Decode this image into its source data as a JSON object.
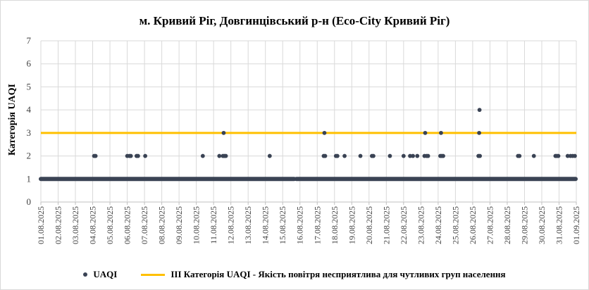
{
  "chart_data": {
    "type": "scatter",
    "title": "м. Кривий Ріг, Довгинцівський р-н (Eco-City Кривий Ріг)",
    "ylabel": "Категорія UAQI",
    "xlabel": "",
    "ylim": [
      0,
      7
    ],
    "yticks": [
      "0",
      "1",
      "2",
      "3",
      "4",
      "5",
      "6",
      "7"
    ],
    "xlim": [
      "2025-08-01",
      "2025-09-01"
    ],
    "xticks": [
      "01.08.2025",
      "02.08.2025",
      "03.08.2025",
      "04.08.2025",
      "05.08.2025",
      "06.08.2025",
      "07.08.2025",
      "08.08.2025",
      "09.08.2025",
      "10.08.2025",
      "11.08.2025",
      "12.08.2025",
      "13.08.2025",
      "14.08.2025",
      "15.08.2025",
      "16.08.2025",
      "17.08.2025",
      "18.08.2025",
      "19.08.2025",
      "20.08.2025",
      "21.08.2025",
      "22.08.2025",
      "23.08.2025",
      "24.08.2025",
      "25.08.2025",
      "26.08.2025",
      "27.08.2025",
      "28.08.2025",
      "29.08.2025",
      "30.08.2025",
      "31.08.2025",
      "01.09.2025"
    ],
    "grid": true,
    "legend_position": "bottom",
    "series": [
      {
        "name": "UAQI",
        "marker": "dot",
        "color": "#3a4354",
        "baseline_segments": [
          {
            "from": "2025-08-01 00:00",
            "to": "2025-08-15 16:00",
            "y": 1
          },
          {
            "from": "2025-08-15 19:00",
            "to": "2025-08-31 23:00",
            "y": 1
          }
        ],
        "points": [
          {
            "x": "2025-08-04 02:00",
            "y": 2
          },
          {
            "x": "2025-08-04 04:00",
            "y": 2
          },
          {
            "x": "2025-08-06 00:00",
            "y": 2
          },
          {
            "x": "2025-08-06 03:00",
            "y": 2
          },
          {
            "x": "2025-08-06 05:00",
            "y": 2
          },
          {
            "x": "2025-08-06 13:00",
            "y": 2
          },
          {
            "x": "2025-08-06 15:00",
            "y": 2
          },
          {
            "x": "2025-08-07 01:00",
            "y": 2
          },
          {
            "x": "2025-08-10 09:00",
            "y": 2
          },
          {
            "x": "2025-08-11 08:00",
            "y": 2
          },
          {
            "x": "2025-08-11 13:00",
            "y": 2
          },
          {
            "x": "2025-08-11 15:00",
            "y": 2
          },
          {
            "x": "2025-08-11 17:00",
            "y": 2
          },
          {
            "x": "2025-08-11 14:00",
            "y": 3
          },
          {
            "x": "2025-08-14 06:00",
            "y": 2
          },
          {
            "x": "2025-08-17 09:00",
            "y": 2
          },
          {
            "x": "2025-08-17 11:00",
            "y": 2
          },
          {
            "x": "2025-08-17 10:00",
            "y": 3
          },
          {
            "x": "2025-08-18 02:00",
            "y": 2
          },
          {
            "x": "2025-08-18 04:00",
            "y": 2
          },
          {
            "x": "2025-08-18 14:00",
            "y": 2
          },
          {
            "x": "2025-08-19 12:00",
            "y": 2
          },
          {
            "x": "2025-08-20 04:00",
            "y": 2
          },
          {
            "x": "2025-08-20 06:00",
            "y": 2
          },
          {
            "x": "2025-08-21 05:00",
            "y": 2
          },
          {
            "x": "2025-08-22 00:00",
            "y": 2
          },
          {
            "x": "2025-08-22 09:00",
            "y": 2
          },
          {
            "x": "2025-08-22 13:00",
            "y": 2
          },
          {
            "x": "2025-08-22 19:00",
            "y": 2
          },
          {
            "x": "2025-08-23 05:00",
            "y": 2
          },
          {
            "x": "2025-08-23 08:00",
            "y": 2
          },
          {
            "x": "2025-08-23 10:00",
            "y": 2
          },
          {
            "x": "2025-08-23 06:00",
            "y": 3
          },
          {
            "x": "2025-08-24 03:00",
            "y": 2
          },
          {
            "x": "2025-08-24 05:00",
            "y": 2
          },
          {
            "x": "2025-08-24 07:00",
            "y": 2
          },
          {
            "x": "2025-08-24 04:00",
            "y": 3
          },
          {
            "x": "2025-08-26 08:00",
            "y": 2
          },
          {
            "x": "2025-08-26 10:00",
            "y": 2
          },
          {
            "x": "2025-08-26 09:00",
            "y": 3
          },
          {
            "x": "2025-08-26 09:30",
            "y": 4
          },
          {
            "x": "2025-08-28 15:00",
            "y": 2
          },
          {
            "x": "2025-08-28 17:00",
            "y": 2
          },
          {
            "x": "2025-08-29 13:00",
            "y": 2
          },
          {
            "x": "2025-08-30 19:00",
            "y": 2
          },
          {
            "x": "2025-08-30 21:00",
            "y": 2
          },
          {
            "x": "2025-08-30 23:00",
            "y": 2
          },
          {
            "x": "2025-08-31 12:00",
            "y": 2
          },
          {
            "x": "2025-08-31 16:00",
            "y": 2
          },
          {
            "x": "2025-08-31 19:00",
            "y": 2
          },
          {
            "x": "2025-08-31 22:00",
            "y": 2
          }
        ]
      },
      {
        "name": "ІІІ Категорія UAQI - Якість повітря несприятлива для чутливих груп населення",
        "marker": "line",
        "color": "#ffc000",
        "y": 3,
        "from": "2025-08-01",
        "to": "2025-09-01"
      }
    ]
  }
}
